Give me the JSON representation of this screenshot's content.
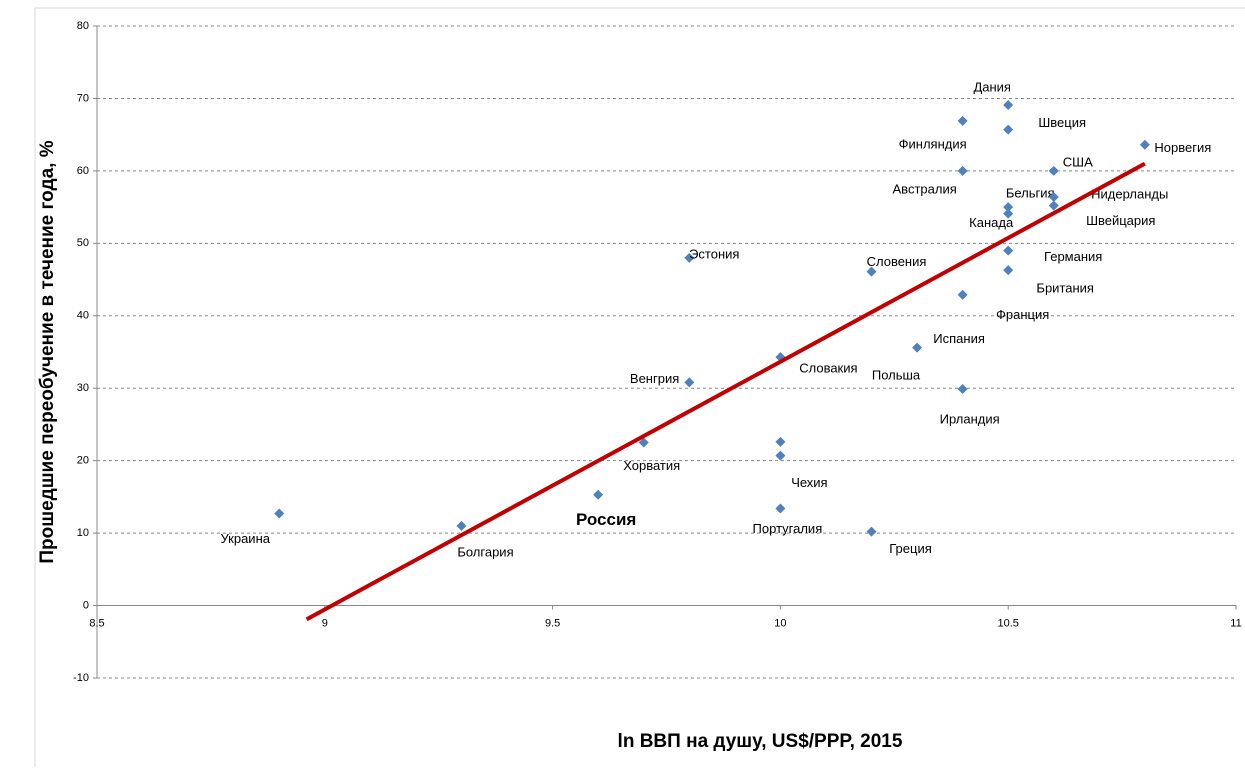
{
  "chart_data": {
    "type": "scatter",
    "ylabel": "Прошедшие переобучение в течение года, %",
    "xlabel": "ln ВВП на душу, US$/PPP, 2015",
    "xlim": [
      8.5,
      11
    ],
    "xticks": [
      8.5,
      9,
      9.5,
      10,
      10.5,
      11
    ],
    "ylim": [
      -10,
      80
    ],
    "yticks": [
      -10,
      0,
      10,
      20,
      30,
      40,
      50,
      60,
      70,
      80
    ],
    "grid": true,
    "series": [
      {
        "color": "#4f81bd",
        "labels": [
          "Украина",
          "Болгария",
          "Россия",
          "Хорватия",
          "Венгрия",
          "Эстония",
          "Словакия",
          null,
          "Чехия",
          "Португалия",
          "Греция",
          "Словения",
          "Испания",
          "Ирландия",
          "Франция",
          "Австралия",
          "Финляндия",
          "Дания",
          "Швеция",
          "Бельгия",
          "Канада",
          "Германия",
          "Британия",
          "США",
          "Нидерланды",
          "Швейцария",
          "Норвегия"
        ],
        "x": [
          8.9,
          9.3,
          9.6,
          9.7,
          9.8,
          9.8,
          10.0,
          10.0,
          10.0,
          10.0,
          10.2,
          10.2,
          10.3,
          10.4,
          10.4,
          10.4,
          10.4,
          10.5,
          10.5,
          10.5,
          10.5,
          10.5,
          10.5,
          10.6,
          10.6,
          10.6,
          10.8
        ],
        "values": [
          12.7,
          11.0,
          15.3,
          22.5,
          30.8,
          48.0,
          34.3,
          22.6,
          20.7,
          13.4,
          10.2,
          46.1,
          35.6,
          29.9,
          42.9,
          60.0,
          66.9,
          69.1,
          65.7,
          55.0,
          54.1,
          49.0,
          46.3,
          60.0,
          56.4,
          55.2,
          63.6
        ]
      },
      {
        "type": "line",
        "color": "#c00000",
        "x": [
          8.96,
          10.8
        ],
        "values": [
          -1.9,
          61.0
        ]
      }
    ],
    "annotations": [
      "Польша"
    ]
  }
}
